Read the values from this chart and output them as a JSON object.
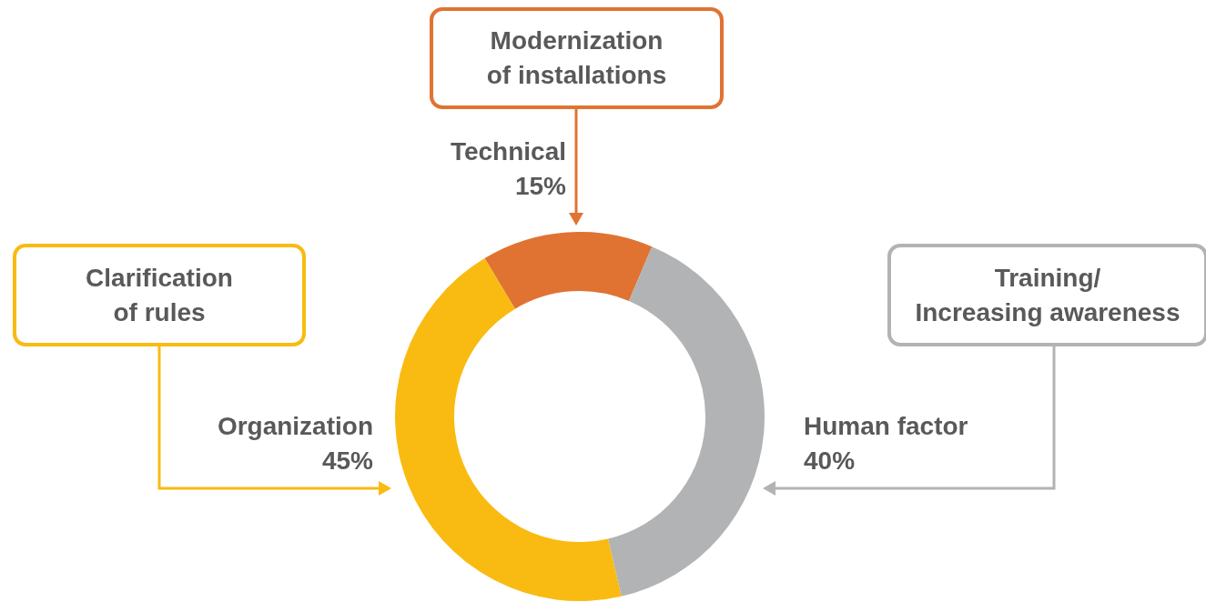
{
  "chart_data": {
    "type": "donut",
    "categories": [
      "Technical",
      "Human factor",
      "Organization"
    ],
    "values": [
      15,
      40,
      45
    ],
    "value_labels": [
      "15%",
      "40%",
      "45%"
    ],
    "colors": [
      "#e07332",
      "#b2b3b5",
      "#f9bb12"
    ],
    "annotations": [
      "Modernization\nof installations",
      "Training/\nIncreasing awareness",
      "Clarification\nof rules"
    ],
    "legend": false
  }
}
